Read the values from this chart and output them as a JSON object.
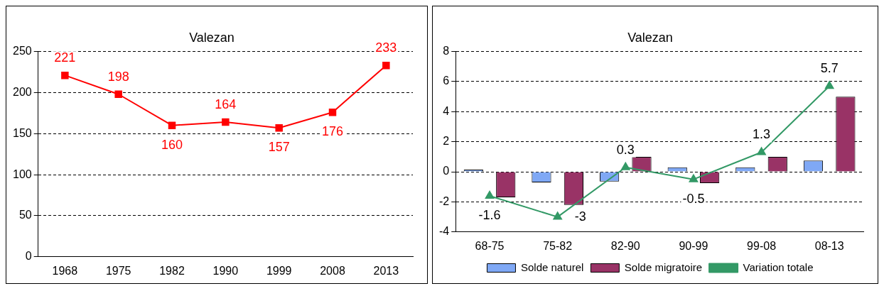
{
  "chart_data": [
    {
      "type": "line",
      "title": "Valezan",
      "categories": [
        "1968",
        "1975",
        "1982",
        "1990",
        "1999",
        "2008",
        "2013"
      ],
      "series": [
        {
          "color": "#ff0000",
          "values": [
            221,
            198,
            160,
            164,
            157,
            176,
            233
          ]
        }
      ],
      "ylim": [
        0,
        250
      ],
      "yticks": [
        0,
        50,
        100,
        150,
        200,
        250
      ],
      "grid": "y",
      "marker": "square",
      "data_labels": true,
      "legend": false
    },
    {
      "type": "bar",
      "title": "Valezan",
      "categories": [
        "68-75",
        "75-82",
        "82-90",
        "90-99",
        "99-08",
        "08-13"
      ],
      "series": [
        {
          "name": "Solde naturel",
          "color": "#7fa8f5",
          "values": [
            0.15,
            -0.7,
            -0.65,
            0.3,
            0.3,
            0.75
          ]
        },
        {
          "name": "Solde migratoire",
          "color": "#993366",
          "values": [
            -1.7,
            -2.2,
            1.0,
            -0.75,
            1.0,
            5.0
          ]
        },
        {
          "name": "Variation totale",
          "type": "line",
          "color": "#339966",
          "marker": "triangle",
          "values": [
            -1.6,
            -3,
            0.3,
            -0.5,
            1.3,
            5.7
          ],
          "value_labels": [
            "-1.6",
            "-3",
            "0.3",
            "-0.5",
            "1.3",
            "5.7"
          ]
        }
      ],
      "ylim": [
        -4,
        8
      ],
      "yticks": [
        -4,
        -2,
        0,
        2,
        4,
        6,
        8
      ],
      "grid": "y",
      "legend": "bottom"
    }
  ]
}
